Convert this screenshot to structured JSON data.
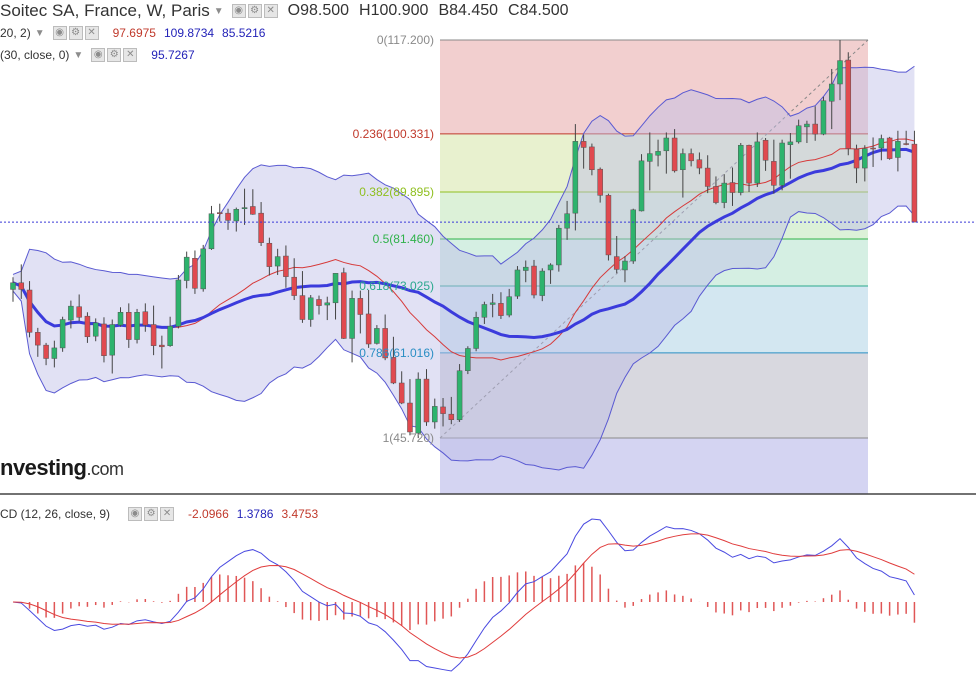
{
  "header": {
    "title": "Soitec SA, France, W, Paris",
    "open": "O98.500",
    "high": "H100.900",
    "low": "B84.450",
    "close": "C84.500"
  },
  "indicators": {
    "bb_label": "20, 2)",
    "bb_values": [
      "97.6975",
      "109.8734",
      "85.5216"
    ],
    "ma_label": "(30, close, 0)",
    "ma_value": "95.7267",
    "macd_label": "CD (12, 26, close, 9)",
    "macd_values": [
      "-2.0966",
      "1.3786",
      "3.4753"
    ]
  },
  "logo": {
    "main": "nvesting",
    "suffix": ".com"
  },
  "colors": {
    "up_candle": "#2db36d",
    "down_candle": "#e0494f",
    "bollinger_band": "#5a5ad2",
    "ma_line": "#3b3bdc",
    "macd_line": "#4a4ae0",
    "signal_line": "#e03c3c",
    "last_price_line": "#3a3ad8"
  },
  "chart_data": {
    "type": "candlestick",
    "title": "Soitec SA, France, W, Paris",
    "y_range": [
      37.5,
      122.7
    ],
    "last_price": 84.5,
    "candles": [
      [
        72.4,
        74.6,
        70.2,
        73.6
      ],
      [
        73.6,
        76.9,
        70.7,
        72.4
      ],
      [
        72.3,
        73.9,
        63.8,
        64.7
      ],
      [
        64.7,
        65.5,
        60.3,
        62.4
      ],
      [
        62.4,
        62.8,
        58.8,
        60.0
      ],
      [
        60.0,
        63.2,
        58.4,
        61.9
      ],
      [
        61.9,
        67.5,
        61.2,
        67.0
      ],
      [
        66.9,
        70.4,
        65.4,
        69.4
      ],
      [
        69.3,
        71.5,
        66.7,
        67.4
      ],
      [
        67.6,
        68.3,
        62.8,
        63.9
      ],
      [
        64.0,
        67.2,
        63.1,
        66.4
      ],
      [
        66.2,
        67.4,
        59.3,
        60.5
      ],
      [
        60.6,
        67.0,
        57.3,
        66.1
      ],
      [
        66.0,
        69.2,
        65.7,
        68.3
      ],
      [
        68.3,
        69.9,
        61.9,
        63.4
      ],
      [
        63.4,
        68.9,
        62.7,
        68.3
      ],
      [
        68.4,
        69.9,
        64.8,
        66.0
      ],
      [
        66.1,
        69.5,
        60.6,
        62.3
      ],
      [
        62.4,
        64.1,
        58.2,
        62.1
      ],
      [
        62.3,
        67.5,
        62.1,
        65.8
      ],
      [
        65.8,
        75.0,
        65.4,
        74.1
      ],
      [
        74.0,
        79.2,
        72.6,
        78.2
      ],
      [
        78.0,
        79.4,
        71.6,
        72.6
      ],
      [
        72.5,
        80.4,
        72.0,
        79.7
      ],
      [
        79.7,
        87.4,
        79.5,
        86.0
      ],
      [
        86.2,
        87.8,
        84.6,
        86.0
      ],
      [
        86.1,
        86.9,
        83.1,
        84.8
      ],
      [
        84.7,
        87.1,
        82.8,
        86.8
      ],
      [
        86.9,
        90.5,
        84.0,
        87.1
      ],
      [
        87.3,
        90.4,
        85.8,
        85.9
      ],
      [
        86.1,
        88.1,
        80.2,
        80.8
      ],
      [
        80.7,
        81.7,
        74.9,
        76.5
      ],
      [
        76.6,
        79.7,
        75.0,
        78.3
      ],
      [
        78.4,
        80.3,
        72.7,
        74.7
      ],
      [
        74.6,
        78.0,
        70.5,
        71.3
      ],
      [
        71.3,
        75.7,
        66.4,
        67.0
      ],
      [
        67.0,
        71.4,
        65.7,
        70.9
      ],
      [
        70.6,
        71.3,
        67.9,
        69.5
      ],
      [
        69.6,
        71.1,
        66.9,
        70.0
      ],
      [
        70.0,
        75.3,
        67.0,
        75.3
      ],
      [
        75.4,
        76.3,
        63.5,
        63.6
      ],
      [
        63.6,
        72.2,
        59.3,
        70.8
      ],
      [
        70.8,
        72.2,
        64.5,
        67.9
      ],
      [
        68.0,
        72.3,
        61.9,
        62.6
      ],
      [
        62.7,
        66.0,
        62.5,
        65.4
      ],
      [
        65.4,
        67.9,
        59.7,
        60.1
      ],
      [
        60.2,
        63.9,
        55.4,
        55.6
      ],
      [
        55.6,
        57.7,
        51.8,
        52.0
      ],
      [
        52.0,
        56.3,
        46.2,
        46.8
      ],
      [
        46.6,
        57.5,
        45.7,
        56.3
      ],
      [
        56.3,
        58.1,
        47.9,
        48.6
      ],
      [
        48.6,
        52.8,
        47.4,
        51.4
      ],
      [
        51.3,
        52.9,
        47.8,
        50.1
      ],
      [
        50.0,
        53.1,
        48.2,
        49.0
      ],
      [
        49.0,
        59.0,
        48.6,
        57.8
      ],
      [
        57.8,
        62.2,
        57.2,
        61.8
      ],
      [
        61.8,
        68.4,
        61.3,
        67.4
      ],
      [
        67.4,
        70.2,
        66.2,
        69.7
      ],
      [
        69.7,
        71.6,
        67.4,
        70.0
      ],
      [
        69.9,
        71.9,
        67.1,
        67.7
      ],
      [
        67.8,
        72.5,
        67.4,
        71.1
      ],
      [
        71.2,
        76.6,
        70.7,
        75.9
      ],
      [
        75.8,
        77.6,
        73.7,
        76.4
      ],
      [
        76.6,
        77.7,
        70.8,
        71.4
      ],
      [
        71.3,
        76.2,
        70.3,
        75.7
      ],
      [
        75.9,
        77.1,
        73.4,
        76.8
      ],
      [
        76.8,
        84.0,
        75.6,
        83.4
      ],
      [
        83.4,
        88.3,
        81.3,
        86.0
      ],
      [
        86.1,
        102.1,
        83.0,
        99.0
      ],
      [
        99.0,
        100.2,
        94.1,
        97.9
      ],
      [
        98.0,
        98.6,
        92.9,
        93.9
      ],
      [
        94.0,
        94.3,
        88.0,
        89.3
      ],
      [
        89.3,
        89.6,
        77.6,
        78.6
      ],
      [
        78.3,
        82.0,
        75.3,
        76.0
      ],
      [
        75.9,
        78.4,
        73.7,
        77.5
      ],
      [
        77.5,
        86.9,
        77.0,
        86.7
      ],
      [
        86.5,
        96.7,
        86.4,
        95.5
      ],
      [
        95.4,
        100.6,
        90.2,
        96.8
      ],
      [
        96.5,
        99.3,
        94.5,
        97.2
      ],
      [
        97.3,
        100.6,
        93.2,
        99.6
      ],
      [
        99.6,
        101.2,
        93.4,
        93.7
      ],
      [
        93.9,
        97.7,
        88.9,
        96.8
      ],
      [
        96.8,
        97.7,
        94.5,
        95.5
      ],
      [
        95.7,
        97.0,
        93.1,
        94.2
      ],
      [
        94.2,
        96.5,
        89.7,
        90.9
      ],
      [
        90.9,
        92.7,
        87.7,
        88.0
      ],
      [
        88.0,
        93.1,
        87.0,
        91.5
      ],
      [
        91.6,
        94.3,
        87.4,
        89.8
      ],
      [
        89.8,
        98.7,
        89.3,
        98.3
      ],
      [
        98.3,
        98.4,
        89.9,
        91.5
      ],
      [
        91.5,
        100.6,
        90.8,
        98.9
      ],
      [
        99.2,
        99.6,
        93.7,
        95.6
      ],
      [
        95.4,
        99.3,
        89.6,
        91.1
      ],
      [
        91.1,
        99.3,
        90.2,
        98.7
      ],
      [
        98.4,
        100.5,
        92.3,
        98.9
      ],
      [
        98.9,
        102.9,
        98.6,
        101.8
      ],
      [
        101.6,
        102.7,
        98.7,
        102.1
      ],
      [
        102.1,
        105.3,
        99.1,
        100.3
      ],
      [
        100.3,
        107.0,
        100.1,
        106.3
      ],
      [
        106.2,
        112.0,
        101.2,
        109.3
      ],
      [
        109.3,
        117.2,
        106.4,
        113.5
      ],
      [
        113.6,
        115.0,
        96.5,
        97.7
      ],
      [
        97.6,
        98.4,
        91.5,
        94.2
      ],
      [
        94.2,
        98.3,
        91.8,
        97.7
      ],
      [
        97.8,
        99.7,
        94.4,
        97.7
      ],
      [
        97.8,
        100.2,
        95.6,
        99.5
      ],
      [
        99.6,
        99.8,
        95.7,
        95.9
      ],
      [
        96.1,
        100.9,
        93.6,
        99.0
      ],
      [
        98.6,
        100.9,
        98.3,
        98.5
      ],
      [
        98.5,
        100.9,
        84.5,
        84.5
      ]
    ],
    "fibonacci": {
      "high": 117.2,
      "low": 45.72,
      "levels": [
        {
          "ratio": "0",
          "value": "117.200",
          "color": "#8a8a8a"
        },
        {
          "ratio": "0.236",
          "value": "100.331",
          "color": "#c0392b"
        },
        {
          "ratio": "0.382",
          "value": "89.895",
          "color": "#8fbf1f"
        },
        {
          "ratio": "0.5",
          "value": "81.460",
          "color": "#2fb24a"
        },
        {
          "ratio": "0.618",
          "value": "73.025",
          "color": "#2ba88e"
        },
        {
          "ratio": "0.786",
          "value": "61.016",
          "color": "#2a8ec4"
        },
        {
          "ratio": "1",
          "value": "45.720",
          "color": "#8a8a8a"
        }
      ],
      "zone_colors": [
        "#f2cfcf",
        "#e8f1cf",
        "#dcf1d8",
        "#d5efe3",
        "#d3e7f1",
        "#d8d8df",
        "#d4d4f2"
      ]
    },
    "macd": {
      "fast": 12,
      "slow": 26,
      "signal": 9,
      "y_range": [
        -8.6,
        7.4
      ]
    }
  }
}
